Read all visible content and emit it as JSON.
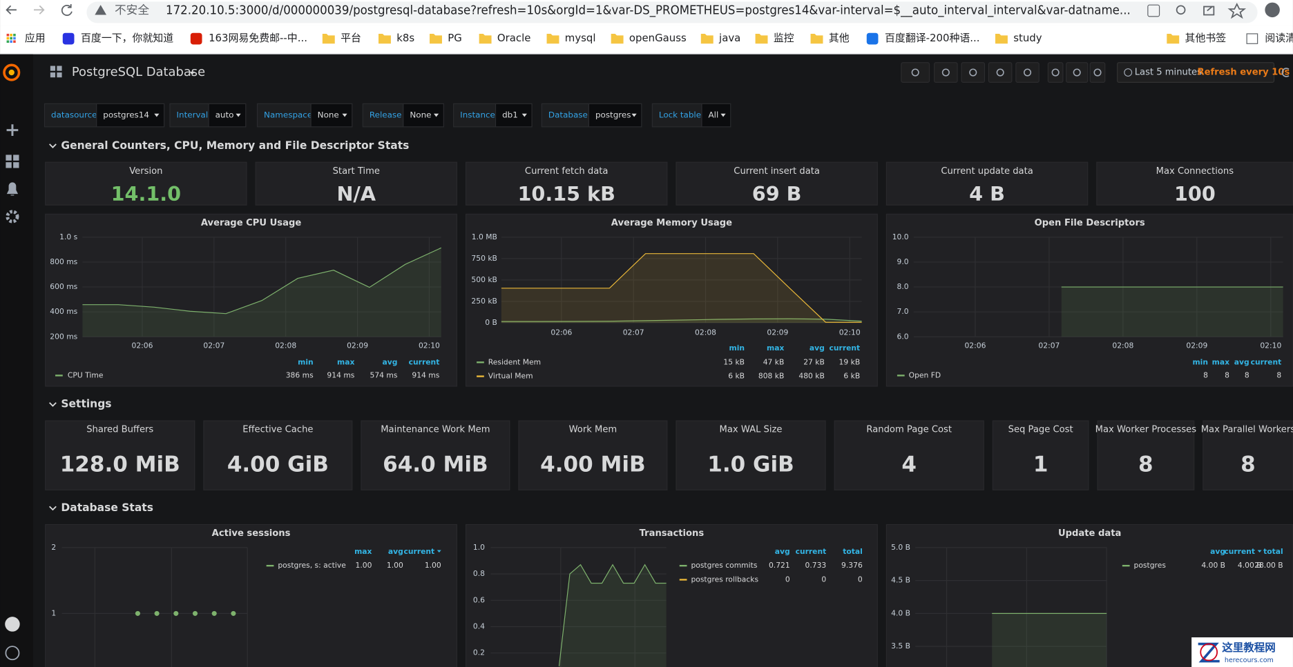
{
  "browser": {
    "security": "不安全",
    "url": "172.20.10.5:3000/d/000000039/postgresql-database?refresh=10s&orgId=1&var-DS_PROMETHEUS=postgres14&var-interval=$__auto_interval_interval&var-datname...",
    "bookmarks": [
      "应用",
      "百度一下，你就知道",
      "163网易免费邮--中...",
      "平台",
      "k8s",
      "PG",
      "Oracle",
      "mysql",
      "openGauss",
      "java",
      "监控",
      "其他",
      "百度翻译-200种语...",
      "study",
      "其他书签",
      "阅读清"
    ]
  },
  "dashboard": {
    "title": "PostgreSQL Database",
    "time_range": "Last 5 minutes",
    "refresh": "Refresh every 10s"
  },
  "variables": [
    {
      "label": "datasource",
      "value": "postgres14"
    },
    {
      "label": "Interval",
      "value": "auto"
    },
    {
      "label": "Namespace",
      "value": "None"
    },
    {
      "label": "Release",
      "value": "None"
    },
    {
      "label": "Instance",
      "value": "db1"
    },
    {
      "label": "Database",
      "value": "postgres"
    },
    {
      "label": "Lock table",
      "value": "All"
    }
  ],
  "rows": [
    "General Counters, CPU, Memory and File Descriptor Stats",
    "Settings",
    "Database Stats"
  ],
  "stat_panels": [
    {
      "title": "Version",
      "value": "14.1.0",
      "color": "#73bf69"
    },
    {
      "title": "Start Time",
      "value": "N/A",
      "color": "#d8d9da"
    },
    {
      "title": "Current fetch data",
      "value": "10.15 kB",
      "color": "#d8d9da"
    },
    {
      "title": "Current insert data",
      "value": "69 B",
      "color": "#d8d9da"
    },
    {
      "title": "Current update data",
      "value": "4 B",
      "color": "#d8d9da"
    },
    {
      "title": "Max Connections",
      "value": "100",
      "color": "#d8d9da"
    }
  ],
  "settings_panels": [
    {
      "title": "Shared Buffers",
      "value": "128.0 MiB"
    },
    {
      "title": "Effective Cache",
      "value": "4.00 GiB"
    },
    {
      "title": "Maintenance Work Mem",
      "value": "64.0 MiB"
    },
    {
      "title": "Work Mem",
      "value": "4.00 MiB"
    },
    {
      "title": "Max WAL Size",
      "value": "1.0 GiB"
    },
    {
      "title": "Random Page Cost",
      "value": "4"
    },
    {
      "title": "Seq Page Cost",
      "value": "1"
    },
    {
      "title": "Max Worker Processes",
      "value": "8"
    },
    {
      "title": "Max Parallel Workers",
      "value": "8"
    }
  ],
  "graph_panels": [
    {
      "title": "Average CPU Usage",
      "type": "line",
      "ylim": [
        200,
        1000
      ],
      "yticks": [
        {
          "value": 200,
          "label": "200 ms"
        },
        {
          "value": 400,
          "label": "400 ms"
        },
        {
          "value": 600,
          "label": "600 ms"
        },
        {
          "value": 800,
          "label": "800 ms"
        },
        {
          "value": 1000,
          "label": "1.0 s"
        }
      ],
      "xlim": [
        "02:05:10",
        "02:10:10"
      ],
      "xticks": [
        "02:06",
        "02:07",
        "02:08",
        "02:09",
        "02:10"
      ],
      "x": [
        "02:05:10",
        "02:05:40",
        "02:06:10",
        "02:06:40",
        "02:07:10",
        "02:07:40",
        "02:08:10",
        "02:08:40",
        "02:09:10",
        "02:09:40",
        "02:10:10"
      ],
      "legend_columns": [
        "min",
        "max",
        "avg",
        "current"
      ],
      "series": [
        {
          "name": "CPU Time",
          "color": "#7eb26d",
          "values": [
            458,
            458,
            438,
            405,
            386,
            491,
            669,
            735,
            597,
            782,
            914
          ],
          "stats": [
            "386 ms",
            "914 ms",
            "574 ms",
            "914 ms"
          ]
        }
      ]
    },
    {
      "title": "Average Memory Usage",
      "type": "line",
      "ylim": [
        0,
        1000
      ],
      "yticks": [
        {
          "value": 0,
          "label": "0 B"
        },
        {
          "value": 250,
          "label": "250 kB"
        },
        {
          "value": 500,
          "label": "500 kB"
        },
        {
          "value": 750,
          "label": "750 kB"
        },
        {
          "value": 1000,
          "label": "1.0 MB"
        }
      ],
      "xlim": [
        "02:05:10",
        "02:10:10"
      ],
      "xticks": [
        "02:06",
        "02:07",
        "02:08",
        "02:09",
        "02:10"
      ],
      "x": [
        "02:05:10",
        "02:05:40",
        "02:06:10",
        "02:06:40",
        "02:07:10",
        "02:07:40",
        "02:08:10",
        "02:08:40",
        "02:09:10",
        "02:09:40",
        "02:10:10"
      ],
      "legend_columns": [
        "min",
        "max",
        "avg",
        "current"
      ],
      "series": [
        {
          "name": "Resident Mem",
          "color": "#7eb26d",
          "values": [
            15,
            15,
            16,
            18,
            25,
            32,
            40,
            45,
            47,
            42,
            19
          ],
          "stats": [
            "15 kB",
            "47 kB",
            "27 kB",
            "19 kB"
          ]
        },
        {
          "name": "Virtual Mem",
          "color": "#eab839",
          "values": [
            404,
            404,
            404,
            404,
            808,
            808,
            808,
            808,
            404,
            6,
            6
          ],
          "stats": [
            "6 kB",
            "808 kB",
            "480 kB",
            "6 kB"
          ]
        }
      ]
    },
    {
      "title": "Open File Descriptors",
      "type": "line",
      "ylim": [
        6,
        10
      ],
      "yticks": [
        {
          "value": 6,
          "label": "6.0"
        },
        {
          "value": 7,
          "label": "7.0"
        },
        {
          "value": 8,
          "label": "8.0"
        },
        {
          "value": 9,
          "label": "9.0"
        },
        {
          "value": 10,
          "label": "10.0"
        }
      ],
      "xlim": [
        "02:05:10",
        "02:10:10"
      ],
      "xticks": [
        "02:06",
        "02:07",
        "02:08",
        "02:09",
        "02:10"
      ],
      "x": [
        "02:05:10",
        "02:05:40",
        "02:06:10",
        "02:06:40",
        "02:07:10",
        "02:07:40",
        "02:08:10",
        "02:08:40",
        "02:09:10",
        "02:09:40",
        "02:10:10"
      ],
      "legend_columns": [
        "min",
        "max",
        "avg",
        "current"
      ],
      "series": [
        {
          "name": "Open FD",
          "color": "#7eb26d",
          "values": [
            null,
            null,
            null,
            null,
            8,
            8,
            8,
            8,
            8,
            8,
            8
          ],
          "stats": [
            "8",
            "8",
            "8",
            "8"
          ]
        }
      ]
    },
    {
      "title": "Active sessions",
      "type": "points",
      "ylim": [
        0,
        2
      ],
      "yticks": [
        2,
        1
      ],
      "legend_columns": [
        "max",
        "avg",
        "current"
      ],
      "legend_sort": "current",
      "series": [
        {
          "name": "postgres, s: active",
          "color": "#7eb26d",
          "values": [
            1,
            1,
            1,
            1,
            1,
            1
          ],
          "stats": [
            "1.00",
            "1.00",
            "1.00"
          ]
        }
      ]
    },
    {
      "title": "Transactions",
      "type": "line",
      "ylim": [
        0,
        1
      ],
      "yticks": [
        {
          "value": 1,
          "label": "1.0"
        },
        {
          "value": 0.8,
          "label": "0.8"
        },
        {
          "value": 0.6,
          "label": "0.6"
        },
        {
          "value": 0.4,
          "label": "0.4"
        },
        {
          "value": 0.2,
          "label": "0.2"
        }
      ],
      "legend_columns": [
        "avg",
        "current",
        "total"
      ],
      "series": [
        {
          "name": "postgres commits",
          "color": "#7eb26d",
          "values": [
            0.1,
            0.8,
            0.87,
            0.73,
            0.73,
            0.87,
            0.73,
            0.73,
            0.87,
            0.73,
            0.73
          ],
          "stats": [
            "0.721",
            "0.733",
            "9.376"
          ]
        },
        {
          "name": "postgres rollbacks",
          "color": "#eab839",
          "stats": [
            "0",
            "0",
            "0"
          ]
        }
      ]
    },
    {
      "title": "Update data",
      "type": "line",
      "ylim": [
        3,
        5
      ],
      "yticks": [
        {
          "value": 5,
          "label": "5.0 B"
        },
        {
          "value": 4.5,
          "label": "4.5 B"
        },
        {
          "value": 4,
          "label": "4.0 B"
        },
        {
          "value": 3.5,
          "label": "3.5 B"
        }
      ],
      "legend_columns": [
        "avg",
        "current",
        "total"
      ],
      "legend_sort": "current",
      "series": [
        {
          "name": "postgres",
          "color": "#7eb26d",
          "values": [
            4,
            4,
            4,
            4,
            4,
            4,
            4
          ],
          "stats": [
            "4.00 B",
            "4.00 B",
            "28.00 B"
          ]
        }
      ]
    }
  ],
  "watermark": {
    "title": "这里教程网",
    "site": "herecours.com"
  }
}
